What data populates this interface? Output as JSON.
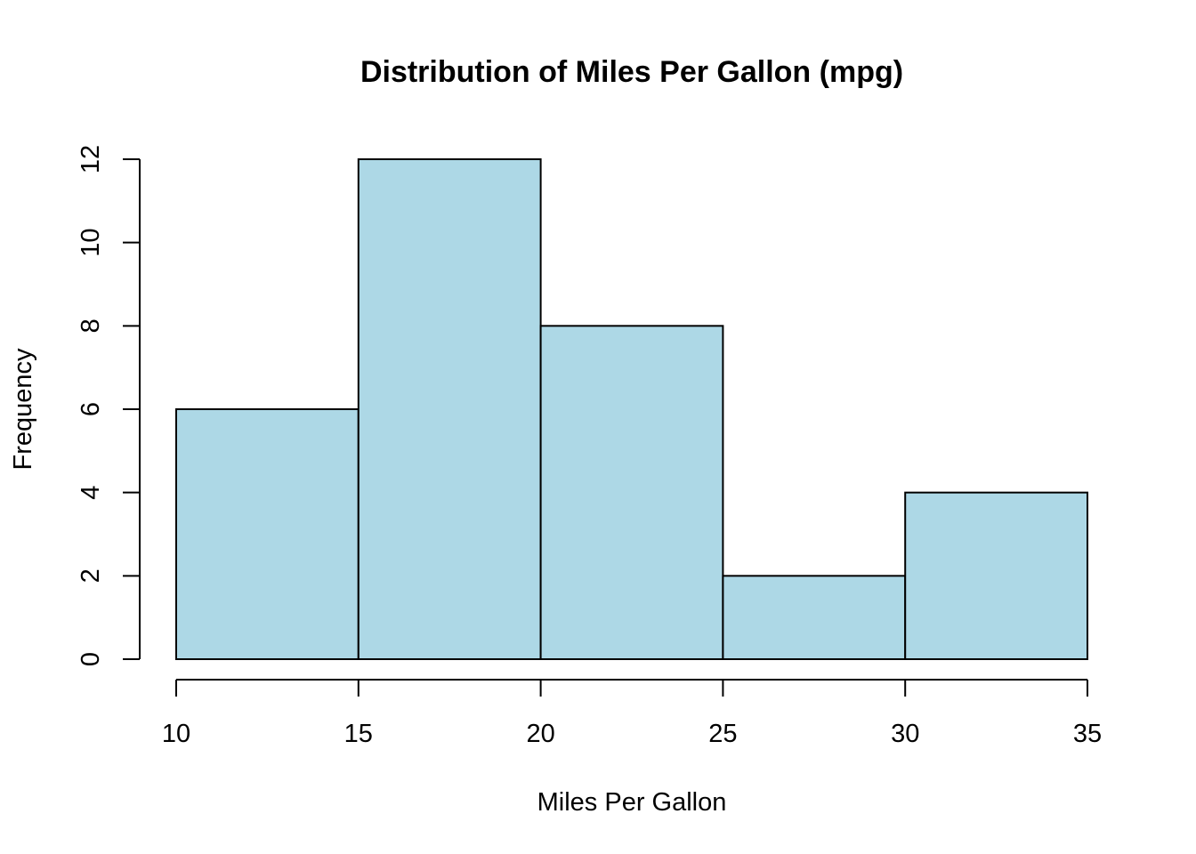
{
  "chart_data": {
    "type": "bar",
    "subtype": "histogram",
    "title": "Distribution of Miles Per Gallon (mpg)",
    "xlabel": "Miles Per Gallon",
    "ylabel": "Frequency",
    "bins": [
      [
        10,
        15
      ],
      [
        15,
        20
      ],
      [
        20,
        25
      ],
      [
        25,
        30
      ],
      [
        30,
        35
      ]
    ],
    "values": [
      6,
      12,
      8,
      2,
      4
    ],
    "xlim": [
      10,
      35
    ],
    "ylim": [
      0,
      12
    ],
    "xticks": [
      10,
      15,
      20,
      25,
      30,
      35
    ],
    "yticks": [
      0,
      2,
      4,
      6,
      8,
      10,
      12
    ],
    "grid": false,
    "colors": {
      "fill": "#ADD8E6",
      "stroke": "#000000"
    }
  }
}
